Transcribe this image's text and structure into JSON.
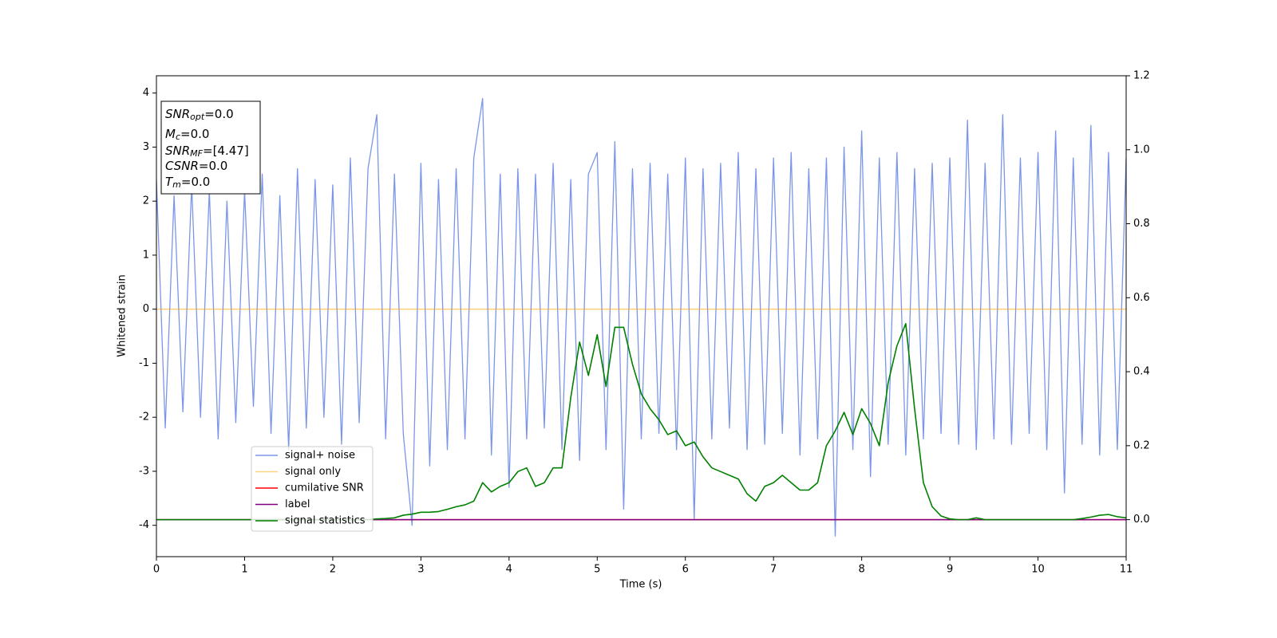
{
  "chart_data": {
    "type": "line",
    "xlabel": "Time (s)",
    "ylabel": "Whitened strain",
    "x": [
      0,
      0.1,
      0.2,
      0.3,
      0.4,
      0.5,
      0.6,
      0.7,
      0.8,
      0.9,
      1,
      1.1,
      1.2,
      1.3,
      1.4,
      1.5,
      1.6,
      1.7,
      1.8,
      1.9,
      2,
      2.1,
      2.2,
      2.3,
      2.4,
      2.5,
      2.6,
      2.7,
      2.8,
      2.9,
      3,
      3.1,
      3.2,
      3.3,
      3.4,
      3.5,
      3.6,
      3.7,
      3.8,
      3.9,
      4,
      4.1,
      4.2,
      4.3,
      4.4,
      4.5,
      4.6,
      4.7,
      4.8,
      4.9,
      5,
      5.1,
      5.2,
      5.3,
      5.4,
      5.5,
      5.6,
      5.7,
      5.8,
      5.9,
      6,
      6.1,
      6.2,
      6.3,
      6.4,
      6.5,
      6.6,
      6.7,
      6.8,
      6.9,
      7,
      7.1,
      7.2,
      7.3,
      7.4,
      7.5,
      7.6,
      7.7,
      7.8,
      7.9,
      8,
      8.1,
      8.2,
      8.3,
      8.4,
      8.5,
      8.6,
      8.7,
      8.8,
      8.9,
      9,
      9.1,
      9.2,
      9.3,
      9.4,
      9.5,
      9.6,
      9.7,
      9.8,
      9.9,
      10,
      10.1,
      10.2,
      10.3,
      10.4,
      10.5,
      10.6,
      10.7,
      10.8,
      10.9,
      11
    ],
    "series": [
      {
        "name": "signal+ noise",
        "color": "#7b96e8",
        "axis": "y",
        "values": [
          2.4,
          -2.2,
          2.1,
          -1.9,
          2.3,
          -2.0,
          2.2,
          -2.4,
          2.0,
          -2.1,
          2.2,
          -1.8,
          2.5,
          -2.3,
          2.1,
          -2.6,
          2.6,
          -2.2,
          2.4,
          -2.0,
          2.3,
          -2.5,
          2.8,
          -2.1,
          2.6,
          3.6,
          -2.4,
          2.5,
          -2.3,
          -4.0,
          2.7,
          -2.9,
          2.4,
          -2.6,
          2.6,
          -2.4,
          2.8,
          3.9,
          -2.7,
          2.5,
          -3.3,
          2.6,
          -2.4,
          2.5,
          -2.2,
          2.7,
          -2.6,
          2.4,
          -2.8,
          2.5,
          2.9,
          -2.6,
          3.1,
          -3.7,
          2.6,
          -2.4,
          2.7,
          -2.3,
          2.5,
          -2.6,
          2.8,
          -3.9,
          2.6,
          -2.4,
          2.7,
          -2.2,
          2.9,
          -2.6,
          2.6,
          -2.5,
          2.8,
          -2.3,
          2.9,
          -2.7,
          2.6,
          -2.4,
          2.8,
          -4.2,
          3.0,
          -2.6,
          3.3,
          -3.1,
          2.8,
          -2.5,
          2.9,
          -2.7,
          2.6,
          -2.4,
          2.7,
          -2.3,
          2.8,
          -2.5,
          3.5,
          -2.6,
          2.7,
          -2.4,
          3.6,
          -2.5,
          2.8,
          -2.3,
          2.9,
          -2.6,
          3.3,
          -3.4,
          2.8,
          -2.5,
          3.4,
          -2.7,
          2.9,
          -2.6,
          2.8
        ]
      },
      {
        "name": "signal only",
        "color": "orange",
        "alpha": 0.5,
        "axis": "y",
        "x": [
          0,
          11
        ],
        "values": [
          0,
          0
        ]
      },
      {
        "name": "cumilative SNR",
        "color": "red",
        "axis": "y2",
        "x": [
          0,
          11
        ],
        "values": [
          0,
          0
        ]
      },
      {
        "name": "label",
        "color": "purple",
        "axis": "y2",
        "x": [
          0,
          11
        ],
        "values": [
          0,
          0
        ]
      },
      {
        "name": "signal statistics",
        "color": "green",
        "axis": "y2",
        "values": [
          0,
          0,
          0,
          0,
          0,
          0,
          0,
          0,
          0,
          0,
          0,
          0,
          0,
          0,
          0,
          0,
          0,
          0,
          0,
          0,
          0,
          0,
          0,
          0,
          0,
          0.002,
          0.003,
          0.005,
          0.012,
          0.015,
          0.02,
          0.02,
          0.022,
          0.028,
          0.035,
          0.04,
          0.05,
          0.1,
          0.075,
          0.09,
          0.1,
          0.13,
          0.14,
          0.09,
          0.1,
          0.14,
          0.14,
          0.33,
          0.48,
          0.39,
          0.5,
          0.36,
          0.52,
          0.52,
          0.42,
          0.34,
          0.3,
          0.27,
          0.23,
          0.24,
          0.2,
          0.21,
          0.17,
          0.14,
          0.13,
          0.12,
          0.11,
          0.07,
          0.05,
          0.09,
          0.1,
          0.12,
          0.1,
          0.08,
          0.08,
          0.1,
          0.2,
          0.24,
          0.29,
          0.23,
          0.3,
          0.26,
          0.2,
          0.37,
          0.47,
          0.53,
          0.3,
          0.1,
          0.035,
          0.01,
          0.002,
          0,
          0,
          0.005,
          0,
          0,
          0,
          0,
          0,
          0,
          0,
          0,
          0,
          0,
          0,
          0.003,
          0.007,
          0.012,
          0.014,
          0.008,
          0.005
        ]
      }
    ],
    "xlim": [
      0,
      11
    ],
    "xticks": [
      0,
      1,
      2,
      3,
      4,
      5,
      6,
      7,
      8,
      9,
      10,
      11
    ],
    "ylim": [
      -4.58,
      4.32
    ],
    "yticks": [
      -4,
      -3,
      -2,
      -1,
      0,
      1,
      2,
      3,
      4
    ],
    "y2lim": [
      -0.1,
      1.2
    ],
    "y2ticks": [
      {
        "value": 0,
        "label": "0.0"
      },
      {
        "value": 0.2,
        "label": "0.2"
      },
      {
        "value": 0.4,
        "label": "0.4"
      },
      {
        "value": 0.6,
        "label": "0.6"
      },
      {
        "value": 0.8,
        "label": "0.8"
      },
      {
        "value": 1.0,
        "label": "1.0"
      },
      {
        "value": 1.2,
        "label": "1.2"
      }
    ],
    "legend": "lower left",
    "annotation": [
      {
        "base": "SNR",
        "sub": "opt",
        "text": "=0.0"
      },
      {
        "base": "M",
        "sub": "c",
        "text": "=0.0"
      },
      {
        "base": "SNR",
        "sub": "MF",
        "text": "=[4.47]"
      },
      {
        "base": "CSNR",
        "text": "=0.0"
      },
      {
        "base": "T",
        "sub": "m",
        "text": "=0.0"
      }
    ]
  }
}
